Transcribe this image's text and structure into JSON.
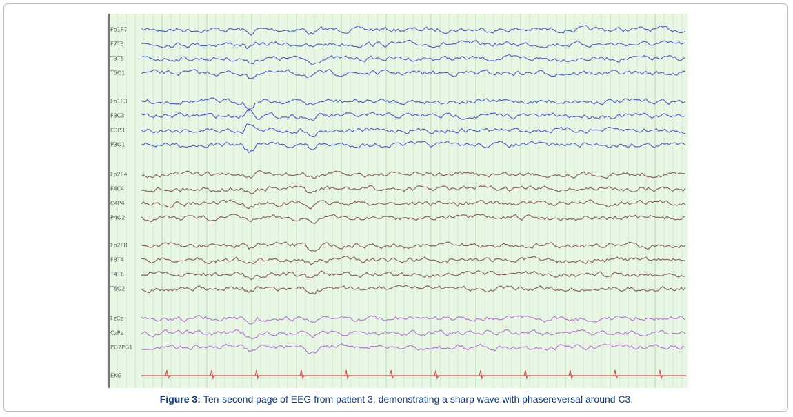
{
  "figure": {
    "caption_label": "Figure 3:",
    "caption_text": "Ten-second page of EEG from patient 3, demonstrating a sharp wave with phasereversal around C3.",
    "channels": [
      "Fp1F7",
      "F7T3",
      "T3T5",
      "T5O1",
      "Fp1F3",
      "F3C3",
      "C3P3",
      "P3O1",
      "Fp2F4",
      "F4C4",
      "C4P4",
      "P4O2",
      "Fp2F8",
      "F8T4",
      "T4T6",
      "T6O2",
      "FzCz",
      "CzPz",
      "PG2PG1",
      "EKG"
    ]
  }
}
